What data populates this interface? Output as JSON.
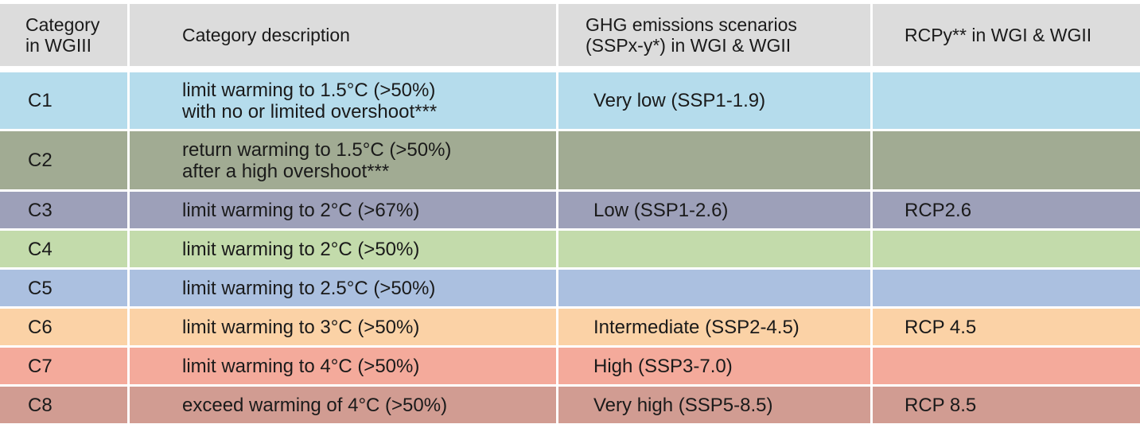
{
  "header": {
    "category": [
      "Category",
      "in WGIII"
    ],
    "description": "Category description",
    "ghg": [
      "GHG emissions scenarios",
      "(SSPx-y*) in WGI & WGII"
    ],
    "rcp": "RCPy** in WGI & WGII"
  },
  "rows": [
    {
      "category": "C1",
      "description": [
        "limit warming to 1.5°C (>50%)",
        "with no or limited overshoot***"
      ],
      "ghg": "Very low (SSP1-1.9)",
      "rcp": "",
      "color": "#b5dcec"
    },
    {
      "category": "C2",
      "description": [
        "return warming to 1.5°C (>50%)",
        "after a high overshoot***"
      ],
      "ghg": "",
      "rcp": "",
      "color": "#a1ab93"
    },
    {
      "category": "C3",
      "description": [
        "limit warming to 2°C (>67%)"
      ],
      "ghg": "Low (SSP1-2.6)",
      "rcp": "RCP2.6",
      "color": "#9da0b9"
    },
    {
      "category": "C4",
      "description": [
        "limit warming to 2°C (>50%)"
      ],
      "ghg": "",
      "rcp": "",
      "color": "#c3dbab"
    },
    {
      "category": "C5",
      "description": [
        "limit warming to 2.5°C (>50%)"
      ],
      "ghg": "",
      "rcp": "",
      "color": "#abc0e0"
    },
    {
      "category": "C6",
      "description": [
        "limit warming to 3°C (>50%)"
      ],
      "ghg": "Intermediate (SSP2-4.5)",
      "rcp": "RCP 4.5",
      "color": "#fbd2a6"
    },
    {
      "category": "C7",
      "description": [
        "limit warming to 4°C (>50%)"
      ],
      "ghg": "High (SSP3-7.0)",
      "rcp": "",
      "color": "#f4aa9b"
    },
    {
      "category": "C8",
      "description": [
        "exceed warming of 4°C (>50%)"
      ],
      "ghg": "Very high (SSP5-8.5)",
      "rcp": "RCP 8.5",
      "color": "#d19c92"
    }
  ]
}
